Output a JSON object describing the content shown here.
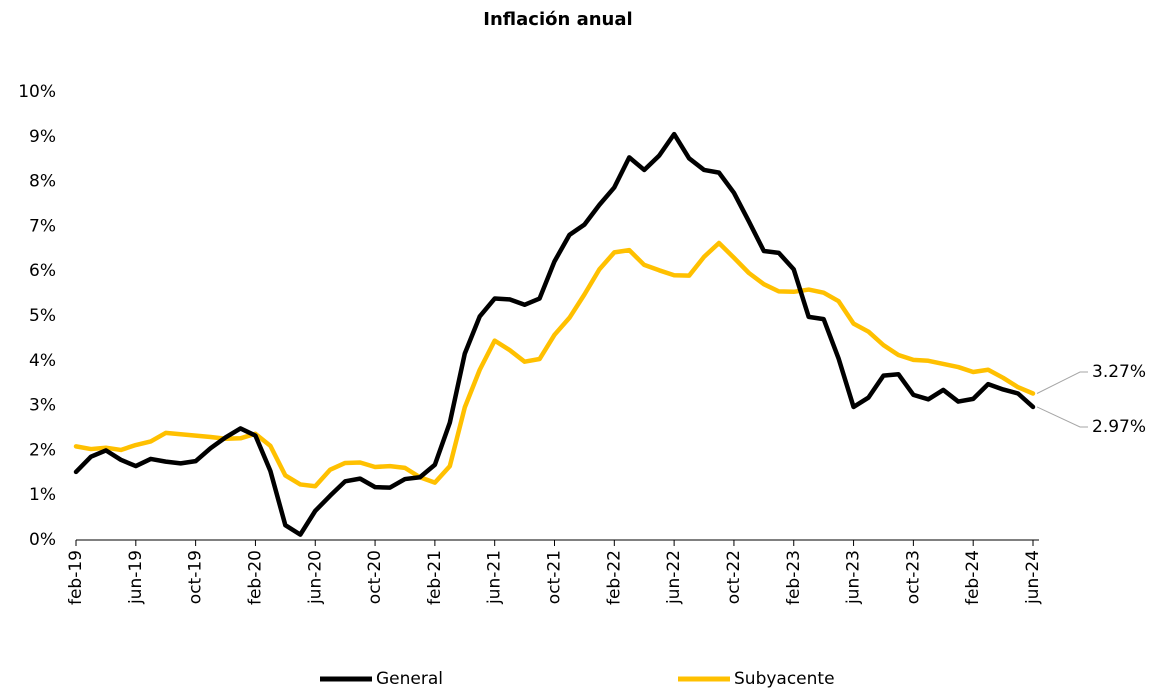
{
  "chart_data": {
    "type": "line",
    "title": "Inflación anual",
    "categories": [
      "feb-19",
      null,
      null,
      null,
      "jun-19",
      null,
      null,
      null,
      "oct-19",
      null,
      null,
      null,
      "feb-20",
      null,
      null,
      null,
      "jun-20",
      null,
      null,
      null,
      "oct-20",
      null,
      null,
      null,
      "feb-21",
      null,
      null,
      null,
      "jun-21",
      null,
      null,
      null,
      "oct-21",
      null,
      null,
      null,
      "feb-22",
      null,
      null,
      null,
      "jun-22",
      null,
      null,
      null,
      "oct-22",
      null,
      null,
      null,
      "feb-23",
      null,
      null,
      null,
      "jun-23",
      null,
      null,
      null,
      "oct-23",
      null,
      null,
      null,
      "feb-24",
      null,
      null,
      null,
      "jun-24"
    ],
    "series": [
      {
        "name": "General",
        "color": "#000000",
        "end_label": "2.97%",
        "values": [
          1.52,
          1.86,
          2.0,
          1.79,
          1.65,
          1.81,
          1.75,
          1.71,
          1.76,
          2.05,
          2.29,
          2.49,
          2.33,
          1.54,
          0.33,
          0.12,
          0.65,
          0.99,
          1.31,
          1.37,
          1.18,
          1.17,
          1.36,
          1.4,
          1.68,
          2.62,
          4.16,
          4.99,
          5.39,
          5.37,
          5.25,
          5.39,
          6.22,
          6.81,
          7.04,
          7.48,
          7.87,
          8.54,
          8.26,
          8.58,
          9.06,
          8.52,
          8.26,
          8.2,
          7.75,
          7.11,
          6.45,
          6.41,
          6.04,
          4.98,
          4.93,
          4.05,
          2.97,
          3.18,
          3.67,
          3.7,
          3.24,
          3.14,
          3.35,
          3.09,
          3.15,
          3.48,
          3.36,
          3.27,
          2.97
        ]
      },
      {
        "name": "Subyacente",
        "color": "#ffc000",
        "end_label": "3.27%",
        "values": [
          2.09,
          2.03,
          2.06,
          2.01,
          2.12,
          2.2,
          2.39,
          2.36,
          2.33,
          2.3,
          2.26,
          2.27,
          2.37,
          2.1,
          1.44,
          1.24,
          1.2,
          1.57,
          1.72,
          1.73,
          1.63,
          1.65,
          1.61,
          1.4,
          1.28,
          1.65,
          2.96,
          3.8,
          4.45,
          4.24,
          3.98,
          4.04,
          4.58,
          4.96,
          5.48,
          6.04,
          6.42,
          6.47,
          6.14,
          6.02,
          5.91,
          5.9,
          6.32,
          6.63,
          6.3,
          5.96,
          5.71,
          5.55,
          5.54,
          5.59,
          5.52,
          5.33,
          4.83,
          4.65,
          4.35,
          4.13,
          4.02,
          4.0,
          3.93,
          3.86,
          3.75,
          3.8,
          3.62,
          3.41,
          3.27
        ]
      }
    ],
    "ylim": [
      0,
      10
    ],
    "yticks": [
      {
        "value": 0,
        "label": "0%"
      },
      {
        "value": 1,
        "label": "1%"
      },
      {
        "value": 2,
        "label": "2%"
      },
      {
        "value": 3,
        "label": "3%"
      },
      {
        "value": 4,
        "label": "4%"
      },
      {
        "value": 5,
        "label": "5%"
      },
      {
        "value": 6,
        "label": "6%"
      },
      {
        "value": 7,
        "label": "7%"
      },
      {
        "value": 8,
        "label": "8%"
      },
      {
        "value": 9,
        "label": "9%"
      },
      {
        "value": 10,
        "label": "10%"
      }
    ],
    "grid": false,
    "legend": "bottom"
  }
}
